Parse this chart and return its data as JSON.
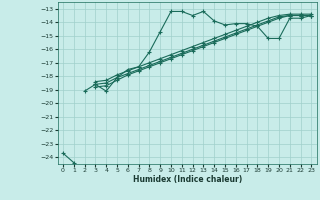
{
  "background_color": "#c8ece9",
  "grid_color": "#a0d0cc",
  "line_color": "#1a6b5a",
  "xlabel": "Humidex (Indice chaleur)",
  "ylim": [
    -24.5,
    -12.5
  ],
  "xlim": [
    -0.5,
    23.5
  ],
  "yticks": [
    -13,
    -14,
    -15,
    -16,
    -17,
    -18,
    -19,
    -20,
    -21,
    -22,
    -23,
    -24
  ],
  "xticks": [
    0,
    1,
    2,
    3,
    4,
    5,
    6,
    7,
    8,
    9,
    10,
    11,
    12,
    13,
    14,
    15,
    16,
    17,
    18,
    19,
    20,
    21,
    22,
    23
  ],
  "series": [
    [
      -23.7,
      -24.4,
      null,
      null,
      null,
      null,
      null,
      null,
      null,
      null,
      null,
      null,
      null,
      null,
      null,
      null,
      null,
      null,
      null,
      null,
      null,
      null,
      null,
      null
    ],
    [
      null,
      null,
      -19.1,
      -18.6,
      -19.1,
      -18.1,
      -17.5,
      -17.3,
      -16.2,
      -14.7,
      -13.2,
      -13.2,
      -13.5,
      -13.2,
      -13.9,
      -14.2,
      -14.1,
      -14.1,
      -14.3,
      -15.2,
      -15.2,
      -13.7,
      -13.7,
      -13.5
    ],
    [
      null,
      null,
      null,
      -18.6,
      -18.5,
      -18.1,
      -17.8,
      -17.5,
      -17.2,
      -16.9,
      -16.6,
      -16.3,
      -16.0,
      -15.7,
      -15.4,
      -15.1,
      -14.8,
      -14.5,
      -14.2,
      -13.9,
      -13.6,
      -13.5,
      -13.5,
      -13.5
    ],
    [
      null,
      null,
      null,
      -18.8,
      -18.7,
      -18.3,
      -17.9,
      -17.6,
      -17.3,
      -17.0,
      -16.7,
      -16.4,
      -16.1,
      -15.8,
      -15.5,
      -15.2,
      -14.9,
      -14.6,
      -14.3,
      -14.0,
      -13.7,
      -13.5,
      -13.5,
      -13.5
    ],
    [
      null,
      null,
      null,
      -18.4,
      -18.3,
      -17.9,
      -17.6,
      -17.3,
      -17.0,
      -16.7,
      -16.4,
      -16.1,
      -15.8,
      -15.5,
      -15.2,
      -14.9,
      -14.6,
      -14.3,
      -14.0,
      -13.7,
      -13.5,
      -13.4,
      -13.4,
      -13.4
    ]
  ]
}
